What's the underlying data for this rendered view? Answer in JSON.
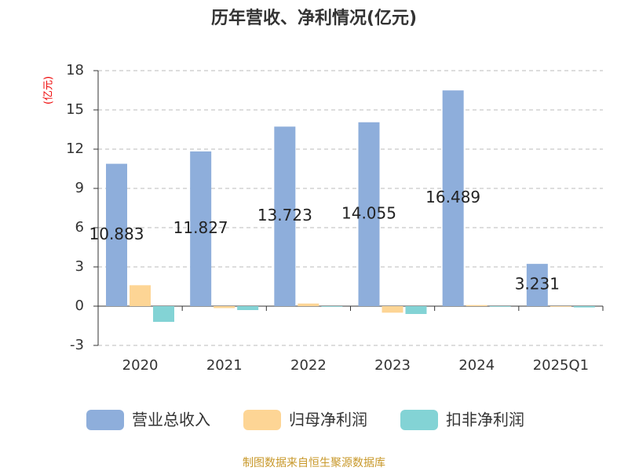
{
  "chart_data": {
    "type": "bar",
    "title": "历年营收、净利情况(亿元)",
    "y_label": "(亿元)",
    "source": "制图数据来自恒生聚源数据库",
    "categories": [
      "2020",
      "2021",
      "2022",
      "2023",
      "2024",
      "2025Q1"
    ],
    "series": [
      {
        "name": "营业总收入",
        "color": "#8eaedb",
        "values": [
          10.883,
          11.827,
          13.723,
          14.055,
          16.489,
          3.231
        ],
        "show_labels": true
      },
      {
        "name": "归母净利润",
        "color": "#fdd595",
        "values": [
          1.6,
          -0.15,
          0.2,
          -0.5,
          0.08,
          -0.05
        ],
        "show_labels": false
      },
      {
        "name": "扣非净利润",
        "color": "#83d3d5",
        "values": [
          -1.2,
          -0.3,
          -0.05,
          -0.6,
          -0.05,
          -0.1
        ],
        "show_labels": false
      }
    ],
    "ylim": [
      -3,
      18
    ],
    "yticks": [
      -3,
      0,
      3,
      6,
      9,
      12,
      15,
      18
    ],
    "grid": true
  }
}
